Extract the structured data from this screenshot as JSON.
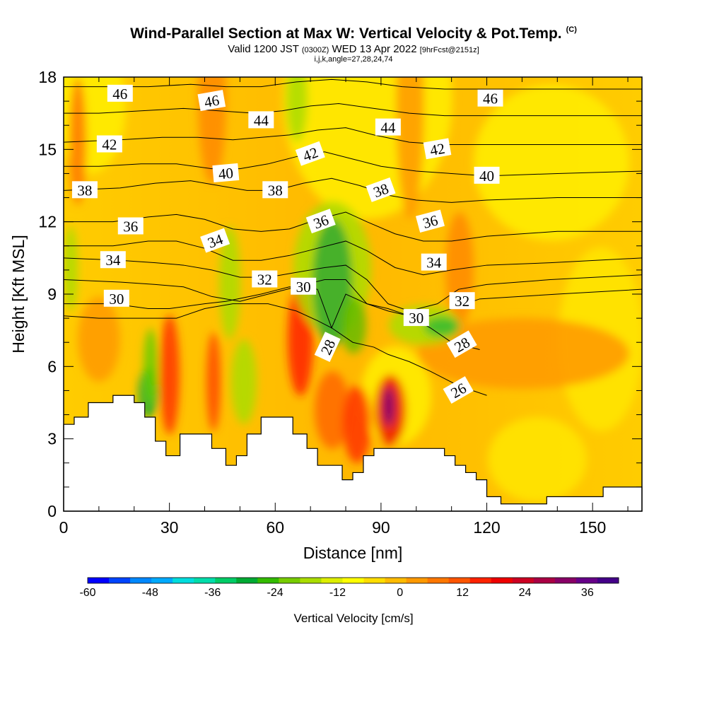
{
  "title": {
    "main": "Wind-Parallel Section at Max W: Vertical Velocity & Pot.Temp.",
    "mark": "(C)",
    "valid_prefix": "Valid 1200 JST",
    "valid_utc": "(0300Z)",
    "valid_date": "WED 13 Apr 2022",
    "forecast": "[9hrFcst@2151z]",
    "indices": "i,j,k,angle=27,28,24,74"
  },
  "chart_data": {
    "type": "heatmap",
    "xlabel": "Distance [nm]",
    "ylabel": "Height [Kft MSL]",
    "xlim": [
      0,
      164
    ],
    "ylim": [
      0,
      18
    ],
    "xticks": [
      0,
      30,
      60,
      90,
      120,
      150
    ],
    "yticks": [
      0,
      3,
      6,
      9,
      12,
      15,
      18
    ],
    "grid": false,
    "colorbar": {
      "label": "Vertical Velocity [cm/s]",
      "min": -60,
      "max": 42,
      "step": 4,
      "tick_values": [
        -60,
        -48,
        -36,
        -24,
        -12,
        0,
        12,
        24,
        36
      ],
      "colors": [
        "#0000ff",
        "#0044ff",
        "#0088ff",
        "#00aaff",
        "#00dddd",
        "#00ddaa",
        "#00cc66",
        "#00aa33",
        "#33bb00",
        "#77cc00",
        "#aadd00",
        "#ddee00",
        "#ffff00",
        "#ffdd00",
        "#ffbb00",
        "#ff9900",
        "#ff7700",
        "#ff5500",
        "#ff2200",
        "#ee0000",
        "#cc0022",
        "#aa0044",
        "#880066",
        "#660088",
        "#440088"
      ]
    },
    "terrain_profile": [
      {
        "x": 0,
        "z": 3.6
      },
      {
        "x": 3,
        "z": 3.6
      },
      {
        "x": 3,
        "z": 3.9
      },
      {
        "x": 7,
        "z": 3.9
      },
      {
        "x": 7,
        "z": 4.5
      },
      {
        "x": 14,
        "z": 4.5
      },
      {
        "x": 14,
        "z": 4.8
      },
      {
        "x": 20,
        "z": 4.8
      },
      {
        "x": 20,
        "z": 4.5
      },
      {
        "x": 23,
        "z": 4.5
      },
      {
        "x": 23,
        "z": 3.9
      },
      {
        "x": 26,
        "z": 3.9
      },
      {
        "x": 26,
        "z": 2.9
      },
      {
        "x": 29,
        "z": 2.9
      },
      {
        "x": 29,
        "z": 2.3
      },
      {
        "x": 33,
        "z": 2.3
      },
      {
        "x": 33,
        "z": 3.2
      },
      {
        "x": 42,
        "z": 3.2
      },
      {
        "x": 42,
        "z": 2.6
      },
      {
        "x": 46,
        "z": 2.6
      },
      {
        "x": 46,
        "z": 1.9
      },
      {
        "x": 49,
        "z": 1.9
      },
      {
        "x": 49,
        "z": 2.3
      },
      {
        "x": 52,
        "z": 2.3
      },
      {
        "x": 52,
        "z": 3.2
      },
      {
        "x": 56,
        "z": 3.2
      },
      {
        "x": 56,
        "z": 3.9
      },
      {
        "x": 65,
        "z": 3.9
      },
      {
        "x": 65,
        "z": 3.2
      },
      {
        "x": 69,
        "z": 3.2
      },
      {
        "x": 69,
        "z": 2.6
      },
      {
        "x": 72,
        "z": 2.6
      },
      {
        "x": 72,
        "z": 1.9
      },
      {
        "x": 79,
        "z": 1.9
      },
      {
        "x": 79,
        "z": 1.3
      },
      {
        "x": 82,
        "z": 1.3
      },
      {
        "x": 82,
        "z": 1.6
      },
      {
        "x": 85,
        "z": 1.6
      },
      {
        "x": 85,
        "z": 2.3
      },
      {
        "x": 88,
        "z": 2.3
      },
      {
        "x": 88,
        "z": 2.6
      },
      {
        "x": 108,
        "z": 2.6
      },
      {
        "x": 108,
        "z": 2.3
      },
      {
        "x": 111,
        "z": 2.3
      },
      {
        "x": 111,
        "z": 1.9
      },
      {
        "x": 114,
        "z": 1.9
      },
      {
        "x": 114,
        "z": 1.6
      },
      {
        "x": 117,
        "z": 1.6
      },
      {
        "x": 117,
        "z": 1.3
      },
      {
        "x": 120,
        "z": 1.3
      },
      {
        "x": 120,
        "z": 0.6
      },
      {
        "x": 124,
        "z": 0.6
      },
      {
        "x": 124,
        "z": 0.3
      },
      {
        "x": 137,
        "z": 0.3
      },
      {
        "x": 137,
        "z": 0.6
      },
      {
        "x": 153,
        "z": 0.6
      },
      {
        "x": 153,
        "z": 1.0
      },
      {
        "x": 164,
        "z": 1.0
      }
    ],
    "isentropes": [
      {
        "value": 26,
        "label": {
          "x": 112,
          "z": 5.0,
          "angle": -30
        },
        "points": [
          [
            120,
            4.8
          ],
          [
            112,
            5.2
          ],
          [
            104,
            5.8
          ],
          [
            98,
            6.2
          ],
          [
            92,
            6.5
          ],
          [
            88,
            6.8
          ],
          [
            82,
            7.0
          ],
          [
            76,
            7.6
          ],
          [
            72,
            7.9
          ],
          [
            66,
            8.3
          ],
          [
            58,
            8.6
          ],
          [
            48,
            8.6
          ],
          [
            40,
            8.4
          ],
          [
            32,
            8.0
          ],
          [
            26,
            8.0
          ],
          [
            20,
            8.0
          ],
          [
            10,
            8.0
          ],
          [
            0,
            8.1
          ]
        ]
      },
      {
        "value": 28,
        "label": {
          "x": 75,
          "z": 6.8,
          "angle": -65
        },
        "points": [
          [
            118,
            6.7
          ],
          [
            110,
            7.0
          ],
          [
            104,
            7.6
          ],
          [
            98,
            8.1
          ],
          [
            92,
            8.4
          ],
          [
            86,
            8.6
          ],
          [
            80,
            9.0
          ],
          [
            76,
            7.6
          ],
          [
            72,
            9.2
          ],
          [
            64,
            9.3
          ],
          [
            56,
            9.0
          ],
          [
            46,
            8.7
          ],
          [
            40,
            8.6
          ],
          [
            30,
            8.4
          ],
          [
            24,
            8.4
          ],
          [
            14,
            8.6
          ],
          [
            0,
            8.6
          ]
        ]
      },
      {
        "value": 28,
        "label": {
          "x": 113,
          "z": 6.9,
          "angle": -30
        },
        "points": []
      },
      {
        "value": 30,
        "label": {
          "x": 15,
          "z": 8.8,
          "angle": 0
        },
        "points": [
          [
            164,
            9.2
          ],
          [
            140,
            9.0
          ],
          [
            118,
            8.8
          ],
          [
            110,
            8.4
          ],
          [
            104,
            8.1
          ],
          [
            98,
            8.1
          ],
          [
            92,
            8.3
          ],
          [
            86,
            8.6
          ],
          [
            80,
            9.6
          ],
          [
            74,
            9.6
          ],
          [
            66,
            9.3
          ],
          [
            58,
            9.0
          ],
          [
            50,
            8.7
          ],
          [
            42,
            8.9
          ],
          [
            34,
            9.3
          ],
          [
            26,
            9.4
          ],
          [
            16,
            9.5
          ],
          [
            0,
            9.6
          ]
        ]
      },
      {
        "value": 30,
        "label": {
          "x": 68,
          "z": 9.3,
          "angle": 0
        },
        "points": []
      },
      {
        "value": 30,
        "label": {
          "x": 100,
          "z": 8.0,
          "angle": 0
        },
        "points": []
      },
      {
        "value": 32,
        "label": {
          "x": 57,
          "z": 9.6,
          "angle": 0
        },
        "points": [
          [
            164,
            9.8
          ],
          [
            138,
            9.6
          ],
          [
            120,
            9.4
          ],
          [
            112,
            9.2
          ],
          [
            106,
            8.6
          ],
          [
            98,
            8.3
          ],
          [
            92,
            8.6
          ],
          [
            86,
            9.6
          ],
          [
            80,
            10.2
          ],
          [
            74,
            10.1
          ],
          [
            66,
            9.9
          ],
          [
            58,
            9.7
          ],
          [
            50,
            9.7
          ],
          [
            42,
            10.0
          ],
          [
            34,
            10.2
          ],
          [
            26,
            10.3
          ],
          [
            16,
            10.4
          ],
          [
            0,
            10.5
          ]
        ]
      },
      {
        "value": 32,
        "label": {
          "x": 113,
          "z": 8.7,
          "angle": 0
        },
        "points": []
      },
      {
        "value": 34,
        "label": {
          "x": 14,
          "z": 10.4,
          "angle": 0
        },
        "points": [
          [
            164,
            10.5
          ],
          [
            138,
            10.3
          ],
          [
            120,
            10.2
          ],
          [
            110,
            10.0
          ],
          [
            102,
            9.8
          ],
          [
            94,
            10.1
          ],
          [
            86,
            10.8
          ],
          [
            80,
            11.2
          ],
          [
            72,
            10.9
          ],
          [
            64,
            10.6
          ],
          [
            56,
            10.4
          ],
          [
            48,
            10.4
          ],
          [
            40,
            10.9
          ],
          [
            32,
            11.2
          ],
          [
            24,
            11.2
          ],
          [
            14,
            11.0
          ],
          [
            0,
            11.0
          ]
        ]
      },
      {
        "value": 34,
        "label": {
          "x": 43,
          "z": 11.2,
          "angle": -20
        },
        "points": []
      },
      {
        "value": 34,
        "label": {
          "x": 105,
          "z": 10.3,
          "angle": 0
        },
        "points": []
      },
      {
        "value": 36,
        "label": {
          "x": 19,
          "z": 11.8,
          "angle": 0
        },
        "points": [
          [
            164,
            11.6
          ],
          [
            140,
            11.6
          ],
          [
            120,
            11.4
          ],
          [
            110,
            11.2
          ],
          [
            102,
            11.2
          ],
          [
            94,
            11.5
          ],
          [
            86,
            12.0
          ],
          [
            80,
            12.4
          ],
          [
            72,
            12.1
          ],
          [
            64,
            11.7
          ],
          [
            56,
            11.6
          ],
          [
            48,
            11.7
          ],
          [
            40,
            12.1
          ],
          [
            32,
            12.3
          ],
          [
            24,
            12.2
          ],
          [
            14,
            12.0
          ],
          [
            0,
            12.0
          ]
        ]
      },
      {
        "value": 36,
        "label": {
          "x": 73,
          "z": 12.0,
          "angle": -20
        },
        "points": []
      },
      {
        "value": 36,
        "label": {
          "x": 104,
          "z": 12.0,
          "angle": -15
        },
        "points": []
      },
      {
        "value": 38,
        "label": {
          "x": 6,
          "z": 13.3,
          "angle": 0
        },
        "points": [
          [
            164,
            13.0
          ],
          [
            140,
            13.0
          ],
          [
            120,
            12.9
          ],
          [
            110,
            12.8
          ],
          [
            100,
            12.9
          ],
          [
            92,
            13.1
          ],
          [
            84,
            13.5
          ],
          [
            76,
            13.8
          ],
          [
            68,
            13.6
          ],
          [
            60,
            13.3
          ],
          [
            52,
            13.3
          ],
          [
            44,
            13.5
          ],
          [
            36,
            13.7
          ],
          [
            26,
            13.6
          ],
          [
            16,
            13.4
          ],
          [
            0,
            13.3
          ]
        ]
      },
      {
        "value": 38,
        "label": {
          "x": 60,
          "z": 13.3,
          "angle": 0
        },
        "points": []
      },
      {
        "value": 38,
        "label": {
          "x": 90,
          "z": 13.3,
          "angle": -20
        },
        "points": []
      },
      {
        "value": 40,
        "label": {
          "x": 46,
          "z": 14.0,
          "angle": -5
        },
        "points": [
          [
            164,
            14.1
          ],
          [
            140,
            14.0
          ],
          [
            120,
            13.9
          ],
          [
            110,
            14.0
          ],
          [
            100,
            14.1
          ],
          [
            90,
            14.3
          ],
          [
            82,
            14.6
          ],
          [
            74,
            14.9
          ],
          [
            66,
            14.7
          ],
          [
            58,
            14.4
          ],
          [
            50,
            14.2
          ],
          [
            42,
            14.2
          ],
          [
            32,
            14.4
          ],
          [
            22,
            14.4
          ],
          [
            10,
            14.3
          ],
          [
            0,
            14.3
          ]
        ]
      },
      {
        "value": 40,
        "label": {
          "x": 120,
          "z": 13.9,
          "angle": 0
        },
        "points": []
      },
      {
        "value": 42,
        "label": {
          "x": 13,
          "z": 15.2,
          "angle": 0
        },
        "points": [
          [
            164,
            15.2
          ],
          [
            140,
            15.2
          ],
          [
            120,
            15.2
          ],
          [
            108,
            15.2
          ],
          [
            98,
            15.3
          ],
          [
            88,
            15.6
          ],
          [
            80,
            15.9
          ],
          [
            72,
            15.8
          ],
          [
            64,
            15.6
          ],
          [
            56,
            15.5
          ],
          [
            48,
            15.4
          ],
          [
            38,
            15.5
          ],
          [
            28,
            15.5
          ],
          [
            16,
            15.4
          ],
          [
            0,
            15.3
          ]
        ]
      },
      {
        "value": 42,
        "label": {
          "x": 70,
          "z": 14.8,
          "angle": -20
        },
        "points": []
      },
      {
        "value": 42,
        "label": {
          "x": 106,
          "z": 15.0,
          "angle": -10
        },
        "points": []
      },
      {
        "value": 44,
        "label": {
          "x": 56,
          "z": 16.2,
          "angle": 0
        },
        "points": [
          [
            164,
            16.4
          ],
          [
            140,
            16.4
          ],
          [
            120,
            16.4
          ],
          [
            108,
            16.4
          ],
          [
            98,
            16.5
          ],
          [
            88,
            16.7
          ],
          [
            78,
            16.9
          ],
          [
            70,
            16.8
          ],
          [
            62,
            16.6
          ],
          [
            54,
            16.5
          ],
          [
            44,
            16.6
          ],
          [
            34,
            16.7
          ],
          [
            22,
            16.6
          ],
          [
            10,
            16.5
          ],
          [
            0,
            16.5
          ]
        ]
      },
      {
        "value": 44,
        "label": {
          "x": 92,
          "z": 15.9,
          "angle": 0
        },
        "points": []
      },
      {
        "value": 46,
        "label": {
          "x": 16,
          "z": 17.3,
          "angle": 0
        },
        "points": [
          [
            164,
            17.5
          ],
          [
            140,
            17.5
          ],
          [
            120,
            17.5
          ],
          [
            108,
            17.5
          ],
          [
            96,
            17.6
          ],
          [
            86,
            17.8
          ],
          [
            76,
            17.9
          ],
          [
            66,
            17.8
          ],
          [
            56,
            17.6
          ],
          [
            46,
            17.6
          ],
          [
            36,
            17.7
          ],
          [
            24,
            17.6
          ],
          [
            12,
            17.6
          ],
          [
            0,
            17.6
          ]
        ]
      },
      {
        "value": 46,
        "label": {
          "x": 42,
          "z": 17.0,
          "angle": -10
        },
        "points": []
      },
      {
        "value": 46,
        "label": {
          "x": 121,
          "z": 17.1,
          "angle": 0
        },
        "points": []
      }
    ]
  }
}
